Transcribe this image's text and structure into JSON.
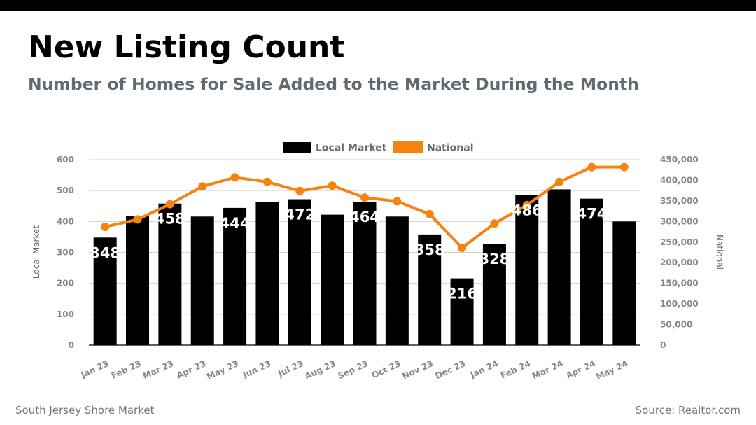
{
  "header": {
    "title": "New Listing Count",
    "subtitle": "Number of Homes for Sale Added to the Market During the Month"
  },
  "footer": {
    "left": "South Jersey Shore Market",
    "right": "Source: Realtor.com"
  },
  "colors": {
    "local": "#000000",
    "national": "#f7830f",
    "grid": "#d0d0d0"
  },
  "chart_data": {
    "type": "bar",
    "categories": [
      "Jan 23",
      "Feb 23",
      "Mar 23",
      "Apr 23",
      "May 23",
      "Jun 23",
      "Jul 23",
      "Aug 23",
      "Sep 23",
      "Oct 23",
      "Nov 23",
      "Dec 23",
      "Jan 24",
      "Feb 24",
      "Mar 24",
      "Apr 24",
      "May 24"
    ],
    "series": [
      {
        "name": "Local Market",
        "type": "bar",
        "axis": "left",
        "values": [
          348,
          418,
          458,
          416,
          444,
          464,
          472,
          422,
          464,
          416,
          358,
          216,
          328,
          486,
          504,
          474,
          400
        ],
        "data_labels": [
          "348",
          "",
          "458",
          "",
          "444",
          "",
          "472",
          "",
          "464",
          "",
          "358",
          "216",
          "328",
          "486",
          "",
          "474",
          ""
        ]
      },
      {
        "name": "National",
        "type": "line",
        "axis": "right",
        "values": [
          287000,
          305000,
          342000,
          385000,
          407000,
          396000,
          374000,
          387000,
          358000,
          349000,
          318000,
          236000,
          295000,
          340000,
          396000,
          432000,
          432000
        ]
      }
    ],
    "ylabel_left": "Local Market",
    "ylabel_right": "National",
    "ylim_left": [
      0,
      600
    ],
    "ylim_right": [
      0,
      450000
    ],
    "yticks_left": [
      "0",
      "100",
      "200",
      "300",
      "400",
      "500",
      "600"
    ],
    "yticks_right": [
      "0",
      "50,000",
      "100,000",
      "150,000",
      "200,000",
      "250,000",
      "300,000",
      "350,000",
      "400,000",
      "450,000"
    ],
    "grid": true,
    "legend_position": "top-center"
  }
}
